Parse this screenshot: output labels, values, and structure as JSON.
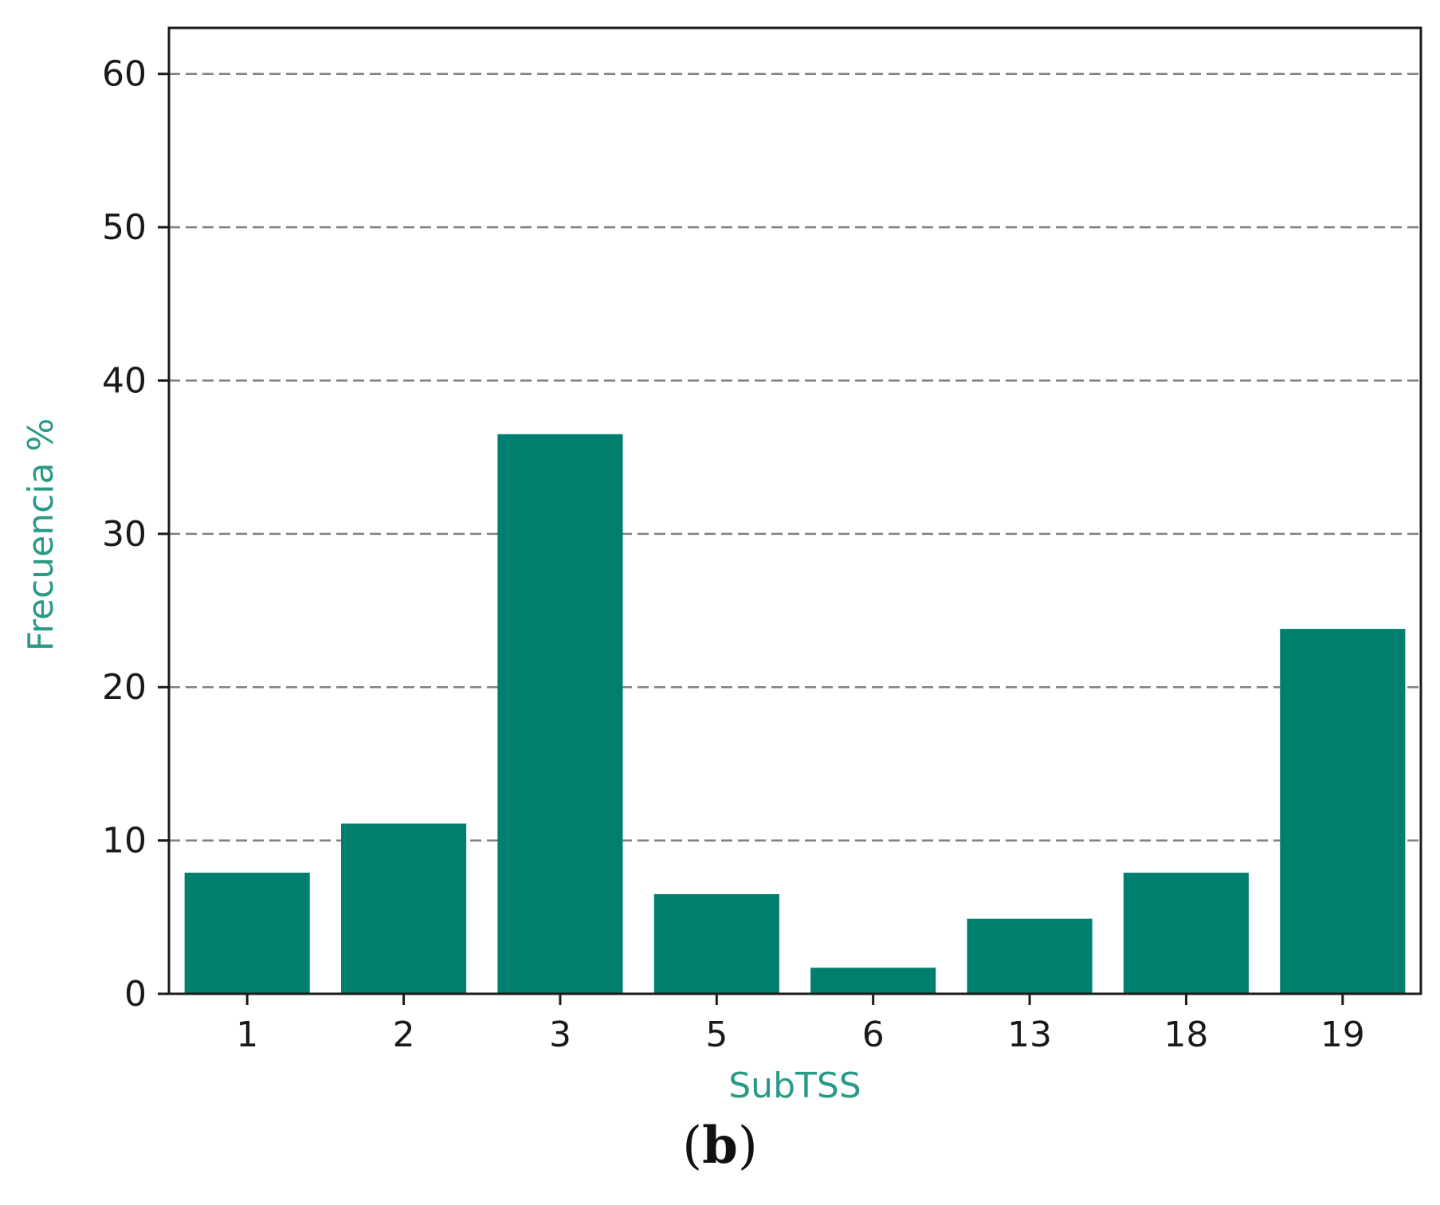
{
  "colors": {
    "bar": "#007F6E",
    "axis_title": "#2A9A88",
    "grid": "#808080",
    "axis": "#1a1a1a"
  },
  "panel_label": {
    "open": "(",
    "letter": "b",
    "close": ")"
  },
  "chart_data": {
    "type": "bar",
    "categories": [
      "1",
      "2",
      "3",
      "5",
      "6",
      "13",
      "18",
      "19"
    ],
    "values": [
      7.9,
      11.1,
      36.5,
      6.5,
      1.7,
      4.9,
      7.9,
      23.8
    ],
    "xlabel": "SubTSS",
    "ylabel": "Frecuencia %",
    "ylim": [
      0,
      63
    ],
    "yticks": [
      0,
      10,
      20,
      30,
      40,
      50,
      60
    ],
    "grid": "horizontal dashed"
  }
}
